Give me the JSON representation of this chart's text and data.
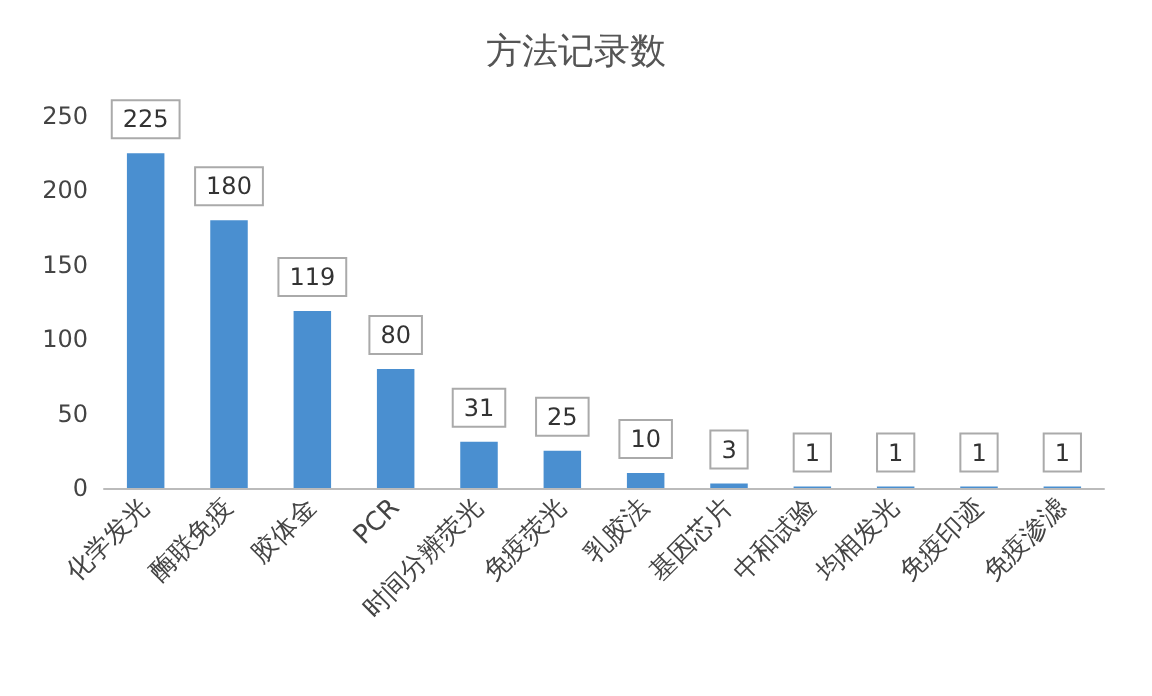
{
  "chart_data": {
    "type": "bar",
    "title": "方法记录数",
    "categories": [
      "化学发光",
      "酶联免疫",
      "胶体金",
      "PCR",
      "时间分辨荧光",
      "免疫荧光",
      "乳胶法",
      "基因芯片",
      "中和试验",
      "均相发光",
      "免疫印迹",
      "免疫渗滤"
    ],
    "values": [
      225,
      180,
      119,
      80,
      31,
      25,
      10,
      3,
      1,
      1,
      1,
      1
    ],
    "color": "#4a8fd0",
    "ylim": [
      0,
      250
    ],
    "yticks": [
      0,
      50,
      100,
      150,
      200,
      250
    ],
    "grid": false,
    "data_labels": true
  }
}
